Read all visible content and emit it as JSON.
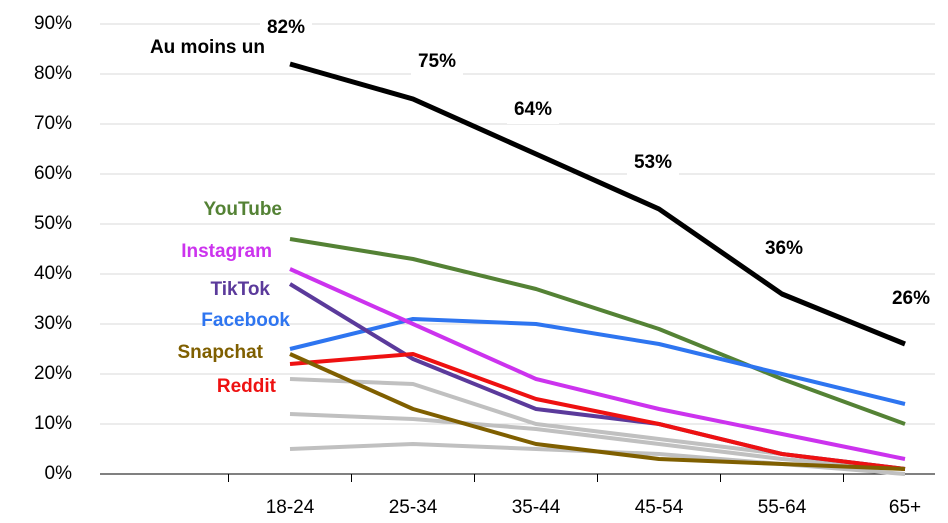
{
  "chart_data": {
    "type": "line",
    "categories": [
      "18-24",
      "25-34",
      "35-44",
      "45-54",
      "55-64",
      "65+"
    ],
    "series": [
      {
        "color": "#c0c0c0",
        "values": [
          19,
          18,
          10,
          7,
          4,
          1
        ]
      },
      {
        "color": "#c0c0c0",
        "values": [
          12,
          11,
          9,
          6,
          3,
          1
        ]
      },
      {
        "color": "#c0c0c0",
        "values": [
          5,
          6,
          5,
          4,
          2,
          0
        ]
      },
      {
        "name": "YouTube",
        "color": "#548235",
        "values": [
          47,
          43,
          37,
          29,
          19,
          10
        ]
      },
      {
        "name": "Facebook",
        "color": "#2e75f0",
        "values": [
          25,
          31,
          30,
          26,
          20,
          14
        ]
      },
      {
        "name": "Instagram",
        "color": "#cc33ee",
        "values": [
          41,
          30,
          19,
          13,
          8,
          3
        ]
      },
      {
        "name": "TikTok",
        "color": "#5b3a9b",
        "values": [
          38,
          23,
          13,
          10,
          4,
          1
        ]
      },
      {
        "name": "Reddit",
        "color": "#ee1111",
        "values": [
          22,
          24,
          15,
          10,
          4,
          1
        ]
      },
      {
        "name": "Snapchat",
        "color": "#7f5f00",
        "values": [
          24,
          13,
          6,
          3,
          2,
          1
        ]
      },
      {
        "name": "Au moins un",
        "color": "#000000",
        "values": [
          82,
          75,
          64,
          53,
          36,
          26
        ],
        "value_labels": [
          "82%",
          "75%",
          "64%",
          "53%",
          "36%",
          "26%"
        ]
      }
    ],
    "ylim": [
      0,
      90
    ],
    "yticks": [
      {
        "value": 0,
        "label": "0%"
      },
      {
        "value": 10,
        "label": "10%"
      },
      {
        "value": 20,
        "label": "20%"
      },
      {
        "value": 30,
        "label": "30%"
      },
      {
        "value": 40,
        "label": "40%"
      },
      {
        "value": 50,
        "label": "50%"
      },
      {
        "value": 60,
        "label": "60%"
      },
      {
        "value": 70,
        "label": "70%"
      },
      {
        "value": 80,
        "label": "80%"
      },
      {
        "value": 90,
        "label": "90%"
      }
    ],
    "grid": true
  }
}
